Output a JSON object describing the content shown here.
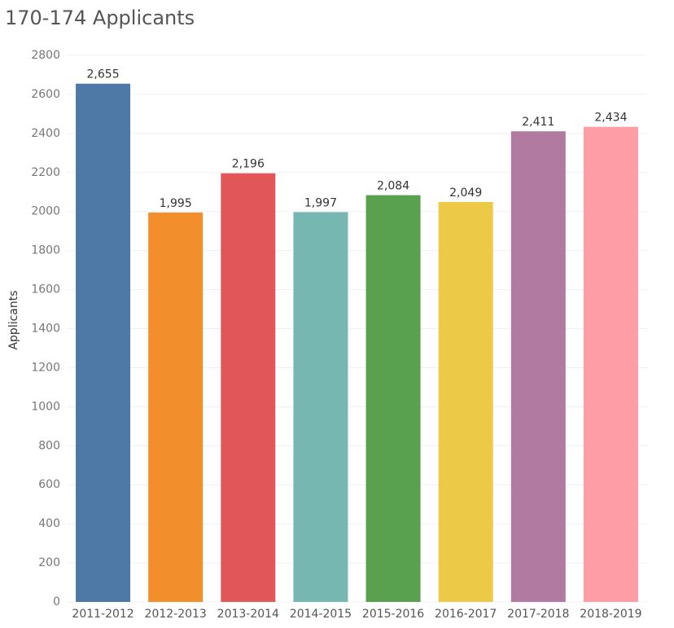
{
  "chart_data": {
    "type": "bar",
    "title": "170-174 Applicants",
    "xlabel": "",
    "ylabel": "Applicants",
    "categories": [
      "2011-2012",
      "2012-2013",
      "2013-2014",
      "2014-2015",
      "2015-2016",
      "2016-2017",
      "2017-2018",
      "2018-2019"
    ],
    "values": [
      2655,
      1995,
      2196,
      1997,
      2084,
      2049,
      2411,
      2434
    ],
    "value_labels": [
      "2,655",
      "1,995",
      "2,196",
      "1,997",
      "2,084",
      "2,049",
      "2,411",
      "2,434"
    ],
    "colors": [
      "#4e79a7",
      "#f28e2b",
      "#e15759",
      "#76b7b2",
      "#59a14f",
      "#edc948",
      "#b07aa1",
      "#ff9da7"
    ],
    "ylim": [
      0,
      2800
    ],
    "yticks": [
      0,
      200,
      400,
      600,
      800,
      1000,
      1200,
      1400,
      1600,
      1800,
      2000,
      2200,
      2400,
      2600,
      2800
    ],
    "grid": true,
    "legend": "none"
  }
}
